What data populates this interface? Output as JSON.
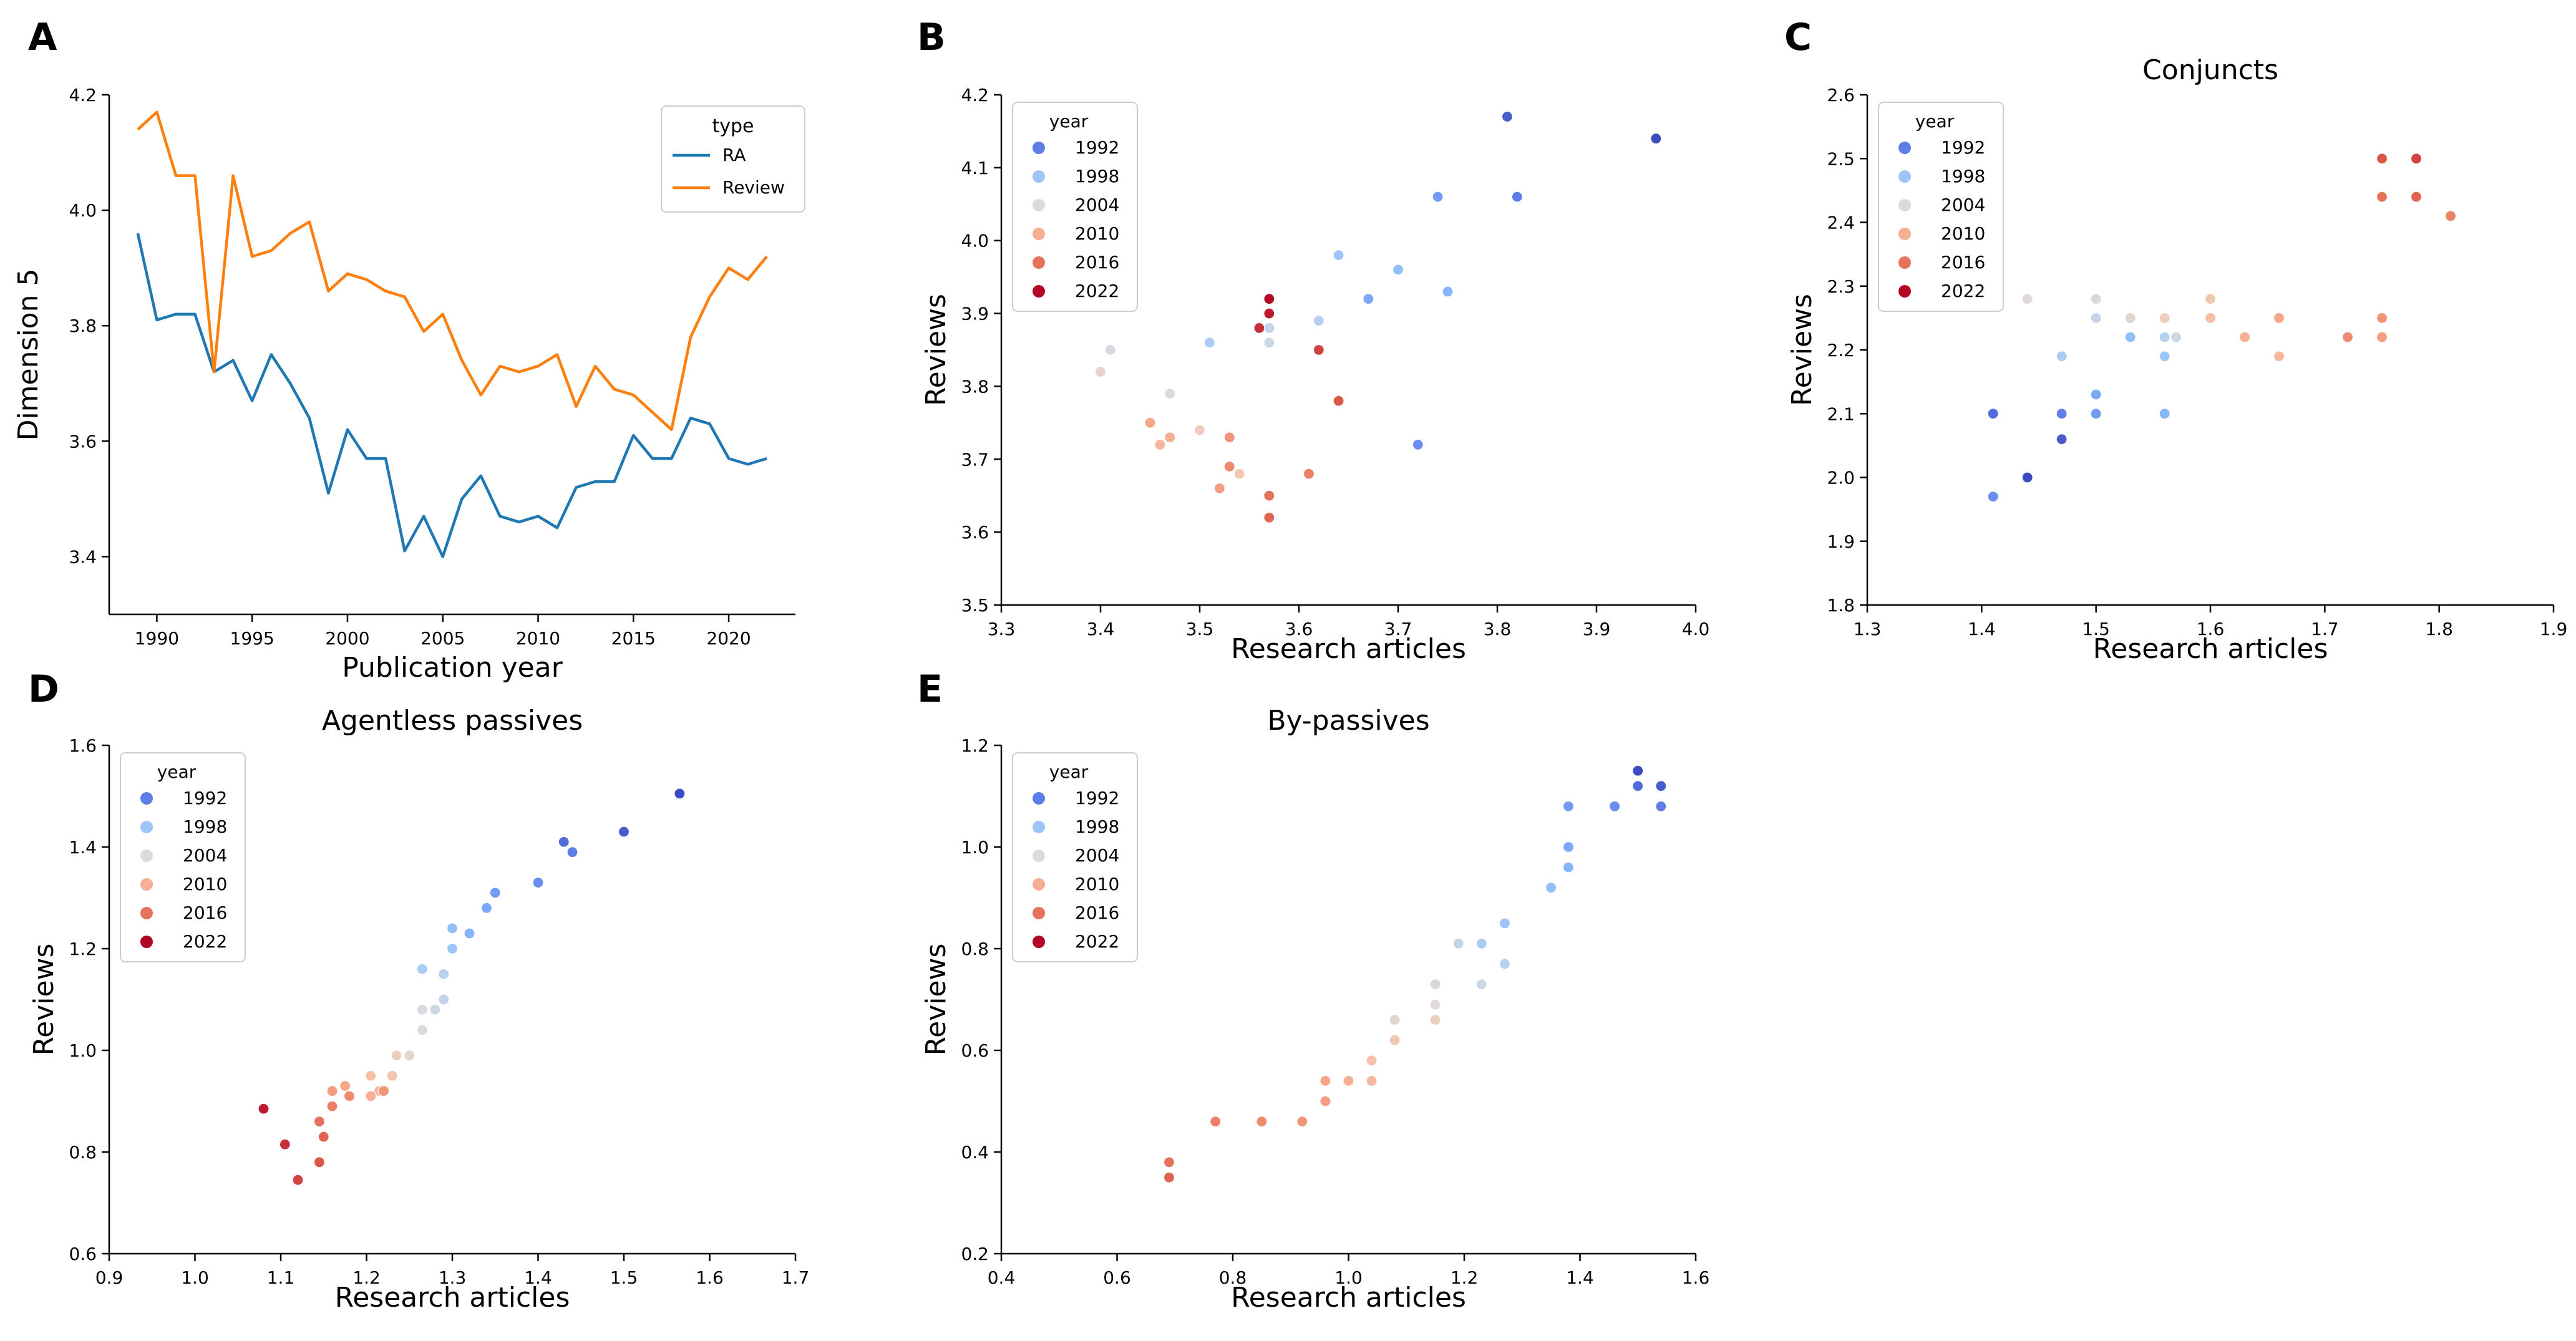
{
  "figure": {
    "colors": {
      "RA": "#1f77b4",
      "Review": "#ff7f0e",
      "year_palette": [
        "#3b4cc0",
        "#6688ee",
        "#88bbff",
        "#b8d0f0",
        "#dddcdc",
        "#f4c5ad",
        "#f7a789",
        "#ee8468",
        "#d65244",
        "#b40426"
      ]
    }
  },
  "chart_data": [
    {
      "panel": "A",
      "type": "line",
      "title": "",
      "xlabel": "Publication year",
      "ylabel": "Dimension 5",
      "xlim": [
        1987.5,
        2023.5
      ],
      "ylim": [
        3.3,
        4.2
      ],
      "xticks": [
        1990,
        1995,
        2000,
        2005,
        2010,
        2015,
        2020
      ],
      "yticks": [
        3.4,
        3.6,
        3.8,
        4.0,
        4.2
      ],
      "legend": {
        "title": "type",
        "position": "top-right",
        "entries": [
          "RA",
          "Review"
        ]
      },
      "x": [
        1989,
        1990,
        1991,
        1992,
        1993,
        1994,
        1995,
        1996,
        1997,
        1998,
        1999,
        2000,
        2001,
        2002,
        2003,
        2004,
        2005,
        2006,
        2007,
        2008,
        2009,
        2010,
        2011,
        2012,
        2013,
        2014,
        2015,
        2016,
        2017,
        2018,
        2019,
        2020,
        2021,
        2022
      ],
      "series": [
        {
          "name": "RA",
          "values": [
            3.96,
            3.81,
            3.82,
            3.82,
            3.72,
            3.74,
            3.67,
            3.75,
            3.7,
            3.64,
            3.51,
            3.62,
            3.57,
            3.57,
            3.41,
            3.47,
            3.4,
            3.5,
            3.54,
            3.47,
            3.46,
            3.47,
            3.45,
            3.52,
            3.53,
            3.53,
            3.61,
            3.57,
            3.57,
            3.64,
            3.63,
            3.57,
            3.56,
            3.57
          ]
        },
        {
          "name": "Review",
          "values": [
            4.14,
            4.17,
            4.06,
            4.06,
            3.72,
            4.06,
            3.92,
            3.93,
            3.96,
            3.98,
            3.86,
            3.89,
            3.88,
            3.86,
            3.85,
            3.79,
            3.82,
            3.74,
            3.68,
            3.73,
            3.72,
            3.73,
            3.75,
            3.66,
            3.73,
            3.69,
            3.68,
            3.65,
            3.62,
            3.78,
            3.85,
            3.9,
            3.88,
            3.92
          ]
        }
      ]
    },
    {
      "panel": "B",
      "type": "scatter",
      "title": "",
      "xlabel": "Research articles",
      "ylabel": "Reviews",
      "xlim": [
        3.3,
        4.0
      ],
      "ylim": [
        3.5,
        4.2
      ],
      "xticks": [
        3.3,
        3.4,
        3.5,
        3.6,
        3.7,
        3.8,
        3.9,
        4.0
      ],
      "yticks": [
        3.5,
        3.6,
        3.7,
        3.8,
        3.9,
        4.0,
        4.1,
        4.2
      ],
      "legend": {
        "title": "year",
        "position": "top-left",
        "entries": [
          "1992",
          "1998",
          "2004",
          "2010",
          "2016",
          "2022"
        ]
      },
      "year_range": [
        1989,
        2022
      ],
      "points": [
        {
          "year": 1989,
          "x": 3.96,
          "y": 4.14
        },
        {
          "year": 1990,
          "x": 3.81,
          "y": 4.17
        },
        {
          "year": 1991,
          "x": 3.82,
          "y": 4.06
        },
        {
          "year": 1992,
          "x": 3.82,
          "y": 4.06
        },
        {
          "year": 1993,
          "x": 3.72,
          "y": 3.72
        },
        {
          "year": 1994,
          "x": 3.74,
          "y": 4.06
        },
        {
          "year": 1995,
          "x": 3.67,
          "y": 3.92
        },
        {
          "year": 1996,
          "x": 3.75,
          "y": 3.93
        },
        {
          "year": 1997,
          "x": 3.7,
          "y": 3.96
        },
        {
          "year": 1998,
          "x": 3.64,
          "y": 3.98
        },
        {
          "year": 1999,
          "x": 3.51,
          "y": 3.86
        },
        {
          "year": 2000,
          "x": 3.62,
          "y": 3.89
        },
        {
          "year": 2001,
          "x": 3.57,
          "y": 3.88
        },
        {
          "year": 2002,
          "x": 3.57,
          "y": 3.86
        },
        {
          "year": 2003,
          "x": 3.41,
          "y": 3.85
        },
        {
          "year": 2004,
          "x": 3.47,
          "y": 3.79
        },
        {
          "year": 2005,
          "x": 3.4,
          "y": 3.82
        },
        {
          "year": 2006,
          "x": 3.5,
          "y": 3.74
        },
        {
          "year": 2007,
          "x": 3.54,
          "y": 3.68
        },
        {
          "year": 2008,
          "x": 3.47,
          "y": 3.73
        },
        {
          "year": 2009,
          "x": 3.46,
          "y": 3.72
        },
        {
          "year": 2010,
          "x": 3.47,
          "y": 3.73
        },
        {
          "year": 2011,
          "x": 3.45,
          "y": 3.75
        },
        {
          "year": 2012,
          "x": 3.52,
          "y": 3.66
        },
        {
          "year": 2013,
          "x": 3.53,
          "y": 3.73
        },
        {
          "year": 2014,
          "x": 3.53,
          "y": 3.69
        },
        {
          "year": 2015,
          "x": 3.61,
          "y": 3.68
        },
        {
          "year": 2016,
          "x": 3.57,
          "y": 3.65
        },
        {
          "year": 2017,
          "x": 3.57,
          "y": 3.62
        },
        {
          "year": 2018,
          "x": 3.64,
          "y": 3.78
        },
        {
          "year": 2019,
          "x": 3.62,
          "y": 3.85
        },
        {
          "year": 2020,
          "x": 3.56,
          "y": 3.88
        },
        {
          "year": 2021,
          "x": 3.57,
          "y": 3.9
        },
        {
          "year": 2022,
          "x": 3.57,
          "y": 3.92
        }
      ]
    },
    {
      "panel": "C",
      "type": "scatter",
      "title": "Conjuncts",
      "xlabel": "Research articles",
      "ylabel": "Reviews",
      "xlim": [
        1.3,
        1.9
      ],
      "ylim": [
        1.8,
        2.6
      ],
      "xticks": [
        1.3,
        1.4,
        1.5,
        1.6,
        1.7,
        1.8,
        1.9
      ],
      "yticks": [
        1.8,
        1.9,
        2.0,
        2.1,
        2.2,
        2.3,
        2.4,
        2.5,
        2.6
      ],
      "legend": {
        "title": "year",
        "position": "top-left",
        "entries": [
          "1992",
          "1998",
          "2004",
          "2010",
          "2016",
          "2022"
        ]
      },
      "year_range": [
        1989,
        2022
      ],
      "points": [
        {
          "year": 1989,
          "x": 1.44,
          "y": 2.0
        },
        {
          "year": 1990,
          "x": 1.47,
          "y": 2.06
        },
        {
          "year": 1991,
          "x": 1.41,
          "y": 2.1
        },
        {
          "year": 1992,
          "x": 1.47,
          "y": 2.1
        },
        {
          "year": 1993,
          "x": 1.41,
          "y": 1.97
        },
        {
          "year": 1994,
          "x": 1.5,
          "y": 2.1
        },
        {
          "year": 1995,
          "x": 1.5,
          "y": 2.13
        },
        {
          "year": 1996,
          "x": 1.56,
          "y": 2.1
        },
        {
          "year": 1997,
          "x": 1.53,
          "y": 2.22
        },
        {
          "year": 1998,
          "x": 1.56,
          "y": 2.19
        },
        {
          "year": 1999,
          "x": 1.47,
          "y": 2.19
        },
        {
          "year": 2000,
          "x": 1.56,
          "y": 2.22
        },
        {
          "year": 2001,
          "x": 1.5,
          "y": 2.25
        },
        {
          "year": 2002,
          "x": 1.57,
          "y": 2.22
        },
        {
          "year": 2003,
          "x": 1.5,
          "y": 2.28
        },
        {
          "year": 2004,
          "x": 1.44,
          "y": 2.28
        },
        {
          "year": 2005,
          "x": 1.53,
          "y": 2.25
        },
        {
          "year": 2006,
          "x": 1.56,
          "y": 2.25
        },
        {
          "year": 2007,
          "x": 1.6,
          "y": 2.28
        },
        {
          "year": 2008,
          "x": 1.6,
          "y": 2.25
        },
        {
          "year": 2009,
          "x": 1.66,
          "y": 2.19
        },
        {
          "year": 2010,
          "x": 1.63,
          "y": 2.22
        },
        {
          "year": 2011,
          "x": 1.66,
          "y": 2.25
        },
        {
          "year": 2012,
          "x": 1.75,
          "y": 2.22
        },
        {
          "year": 2013,
          "x": 1.75,
          "y": 2.25
        },
        {
          "year": 2014,
          "x": 1.72,
          "y": 2.22
        },
        {
          "year": 2015,
          "x": 1.81,
          "y": 2.41
        },
        {
          "year": 2016,
          "x": 1.75,
          "y": 2.44
        },
        {
          "year": 2017,
          "x": 1.78,
          "y": 2.44
        },
        {
          "year": 2018,
          "x": 1.75,
          "y": 2.5
        },
        {
          "year": 2019,
          "x": 1.78,
          "y": 2.5
        }
      ]
    },
    {
      "panel": "D",
      "type": "scatter",
      "title": "Agentless passives",
      "xlabel": "Research articles",
      "ylabel": "Reviews",
      "xlim": [
        0.9,
        1.7
      ],
      "ylim": [
        0.6,
        1.6
      ],
      "xticks": [
        0.9,
        1.0,
        1.1,
        1.2,
        1.3,
        1.4,
        1.5,
        1.6,
        1.7
      ],
      "yticks": [
        0.6,
        0.8,
        1.0,
        1.2,
        1.4,
        1.6
      ],
      "legend": {
        "title": "year",
        "position": "top-left",
        "entries": [
          "1992",
          "1998",
          "2004",
          "2010",
          "2016",
          "2022"
        ]
      },
      "year_range": [
        1989,
        2022
      ],
      "points": [
        {
          "year": 1989,
          "x": 1.565,
          "y": 1.505
        },
        {
          "year": 1990,
          "x": 1.5,
          "y": 1.43
        },
        {
          "year": 1991,
          "x": 1.43,
          "y": 1.41
        },
        {
          "year": 1992,
          "x": 1.44,
          "y": 1.39
        },
        {
          "year": 1993,
          "x": 1.4,
          "y": 1.33
        },
        {
          "year": 1994,
          "x": 1.35,
          "y": 1.31
        },
        {
          "year": 1995,
          "x": 1.34,
          "y": 1.28
        },
        {
          "year": 1996,
          "x": 1.32,
          "y": 1.23
        },
        {
          "year": 1997,
          "x": 1.3,
          "y": 1.24
        },
        {
          "year": 1998,
          "x": 1.3,
          "y": 1.2
        },
        {
          "year": 1999,
          "x": 1.265,
          "y": 1.16
        },
        {
          "year": 2000,
          "x": 1.29,
          "y": 1.15
        },
        {
          "year": 2001,
          "x": 1.29,
          "y": 1.1
        },
        {
          "year": 2002,
          "x": 1.28,
          "y": 1.08
        },
        {
          "year": 2003,
          "x": 1.265,
          "y": 1.08
        },
        {
          "year": 2004,
          "x": 1.265,
          "y": 1.04
        },
        {
          "year": 2005,
          "x": 1.25,
          "y": 0.99
        },
        {
          "year": 2006,
          "x": 1.235,
          "y": 0.99
        },
        {
          "year": 2007,
          "x": 1.23,
          "y": 0.95
        },
        {
          "year": 2008,
          "x": 1.205,
          "y": 0.95
        },
        {
          "year": 2009,
          "x": 1.215,
          "y": 0.92
        },
        {
          "year": 2010,
          "x": 1.205,
          "y": 0.91
        },
        {
          "year": 2011,
          "x": 1.175,
          "y": 0.93
        },
        {
          "year": 2012,
          "x": 1.16,
          "y": 0.92
        },
        {
          "year": 2013,
          "x": 1.22,
          "y": 0.92
        },
        {
          "year": 2014,
          "x": 1.18,
          "y": 0.91
        },
        {
          "year": 2015,
          "x": 1.16,
          "y": 0.89
        },
        {
          "year": 2016,
          "x": 1.145,
          "y": 0.86
        },
        {
          "year": 2017,
          "x": 1.15,
          "y": 0.83
        },
        {
          "year": 2018,
          "x": 1.145,
          "y": 0.78
        },
        {
          "year": 2019,
          "x": 1.12,
          "y": 0.745
        },
        {
          "year": 2020,
          "x": 1.105,
          "y": 0.815
        },
        {
          "year": 2021,
          "x": 1.08,
          "y": 0.885
        }
      ]
    },
    {
      "panel": "E",
      "type": "scatter",
      "title": "By-passives",
      "xlabel": "Research articles",
      "ylabel": "Reviews",
      "xlim": [
        0.4,
        1.6
      ],
      "ylim": [
        0.2,
        1.2
      ],
      "xticks": [
        0.4,
        0.6,
        0.8,
        1.0,
        1.2,
        1.4,
        1.6
      ],
      "yticks": [
        0.2,
        0.4,
        0.6,
        0.8,
        1.0,
        1.2
      ],
      "legend": {
        "title": "year",
        "position": "top-left",
        "entries": [
          "1992",
          "1998",
          "2004",
          "2010",
          "2016",
          "2022"
        ]
      },
      "year_range": [
        1989,
        2022
      ],
      "points": [
        {
          "year": 1989,
          "x": 1.5,
          "y": 1.15
        },
        {
          "year": 1990,
          "x": 1.54,
          "y": 1.12
        },
        {
          "year": 1991,
          "x": 1.5,
          "y": 1.12
        },
        {
          "year": 1992,
          "x": 1.54,
          "y": 1.08
        },
        {
          "year": 1993,
          "x": 1.46,
          "y": 1.08
        },
        {
          "year": 1994,
          "x": 1.38,
          "y": 1.08
        },
        {
          "year": 1995,
          "x": 1.38,
          "y": 1.0
        },
        {
          "year": 1996,
          "x": 1.38,
          "y": 0.96
        },
        {
          "year": 1997,
          "x": 1.35,
          "y": 0.92
        },
        {
          "year": 1998,
          "x": 1.27,
          "y": 0.85
        },
        {
          "year": 1999,
          "x": 1.23,
          "y": 0.81
        },
        {
          "year": 2000,
          "x": 1.27,
          "y": 0.77
        },
        {
          "year": 2001,
          "x": 1.19,
          "y": 0.81
        },
        {
          "year": 2002,
          "x": 1.23,
          "y": 0.73
        },
        {
          "year": 2003,
          "x": 1.15,
          "y": 0.73
        },
        {
          "year": 2004,
          "x": 1.15,
          "y": 0.69
        },
        {
          "year": 2005,
          "x": 1.08,
          "y": 0.66
        },
        {
          "year": 2006,
          "x": 1.15,
          "y": 0.66
        },
        {
          "year": 2007,
          "x": 1.08,
          "y": 0.62
        },
        {
          "year": 2008,
          "x": 1.04,
          "y": 0.58
        },
        {
          "year": 2009,
          "x": 1.04,
          "y": 0.54
        },
        {
          "year": 2010,
          "x": 1.0,
          "y": 0.54
        },
        {
          "year": 2011,
          "x": 0.96,
          "y": 0.54
        },
        {
          "year": 2012,
          "x": 0.96,
          "y": 0.5
        },
        {
          "year": 2013,
          "x": 0.92,
          "y": 0.46
        },
        {
          "year": 2014,
          "x": 0.85,
          "y": 0.46
        },
        {
          "year": 2015,
          "x": 0.77,
          "y": 0.46
        },
        {
          "year": 2016,
          "x": 0.69,
          "y": 0.38
        },
        {
          "year": 2017,
          "x": 0.69,
          "y": 0.35
        }
      ]
    }
  ]
}
